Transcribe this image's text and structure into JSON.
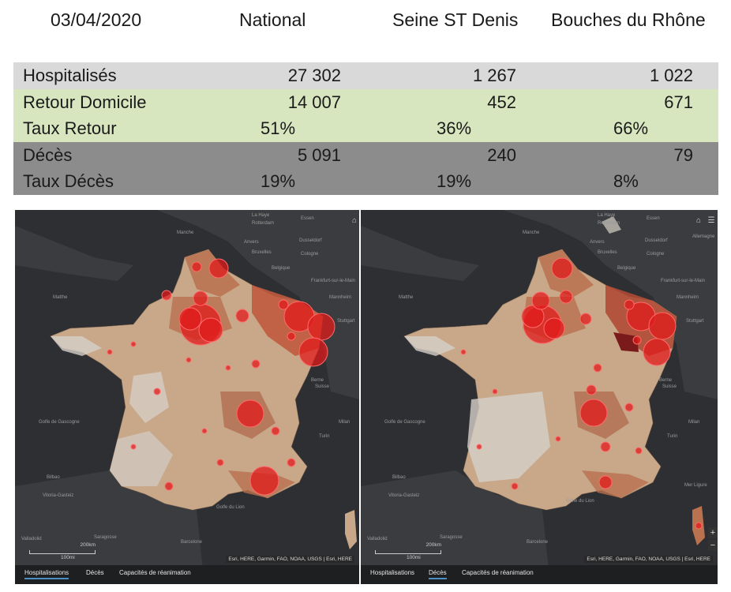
{
  "header": {
    "date": "03/04/2020",
    "col1": "National",
    "col2": "Seine ST Denis",
    "col3": "Bouches du Rhône"
  },
  "table": {
    "hosp": {
      "label": "Hospitalisés",
      "national": "27 302",
      "ssd": "1 267",
      "bdr": "1 022"
    },
    "retour": {
      "label": "Retour Domicile",
      "national": "14 007",
      "ssd": "452",
      "bdr": "671"
    },
    "taux_retour": {
      "label": "Taux Retour",
      "national": "51%",
      "ssd": "36%",
      "bdr": "66%"
    },
    "deces": {
      "label": "Décès",
      "national": "5 091",
      "ssd": "240",
      "bdr": "79"
    },
    "taux_deces": {
      "label": "Taux Décès",
      "national": "19%",
      "ssd": "19%",
      "bdr": "8%"
    }
  },
  "colors": {
    "row_gray": "#d9d9d9",
    "row_green": "#d8e6c0",
    "row_dark": "#8c8c8c",
    "map_bg": "#2d2f32",
    "bubble": "#e01b1b"
  },
  "map_left": {
    "tabs": [
      "Hospitalisations",
      "Décès",
      "Capacités de réanimation"
    ],
    "active_tab": "Hospitalisations",
    "attribution": "Esri, HERE, Garmin, FAO, NOAA, USGS | Esri, HERE",
    "scale_km": "200km",
    "scale_mi": "100mi",
    "places": [
      "Matthe",
      "Manche",
      "Bruxelles",
      "Belgique",
      "Essen",
      "Dusseldorf",
      "Cologne",
      "Frankfurt-sur-le-Main",
      "Mannheim",
      "Stuttgart",
      "Berne",
      "Suisse",
      "Turin",
      "Milan",
      "Golfe de Gascogne",
      "Bilbao",
      "Vitoria-Gasteiz",
      "Barcelone",
      "Saragosse",
      "Valladolid",
      "Golfe du Lion",
      "La Haye",
      "Rotterdam",
      "Anvers"
    ],
    "icons": [
      "home-icon",
      "list-icon"
    ]
  },
  "map_right": {
    "tabs": [
      "Hospitalisations",
      "Décès",
      "Capacités de réanimation"
    ],
    "active_tab": "Décès",
    "attribution": "Esri, HERE, Garmin, FAO, NOAA, USGS | Esri, HERE",
    "scale_km": "200km",
    "scale_mi": "100mi",
    "places": [
      "Matthe",
      "Manche",
      "Bruxelles",
      "Belgique",
      "Essen",
      "Dusseldorf",
      "Cologne",
      "Frankfurt-sur-le-Main",
      "Mannheim",
      "Stuttgart",
      "Berne",
      "Suisse",
      "Turin",
      "Milan",
      "Golfe de Gascogne",
      "Bilbao",
      "Vitoria-Gasteiz",
      "Barcelone",
      "Saragosse",
      "Valladolid",
      "Golfe du Lion",
      "Mer Ligure",
      "La Haye",
      "Rotterdam",
      "Anvers",
      "Allemagne"
    ],
    "icons": [
      "home-icon",
      "list-icon",
      "zoom-in-icon",
      "zoom-out-icon"
    ],
    "zoom_in": "+",
    "zoom_out": "−"
  }
}
